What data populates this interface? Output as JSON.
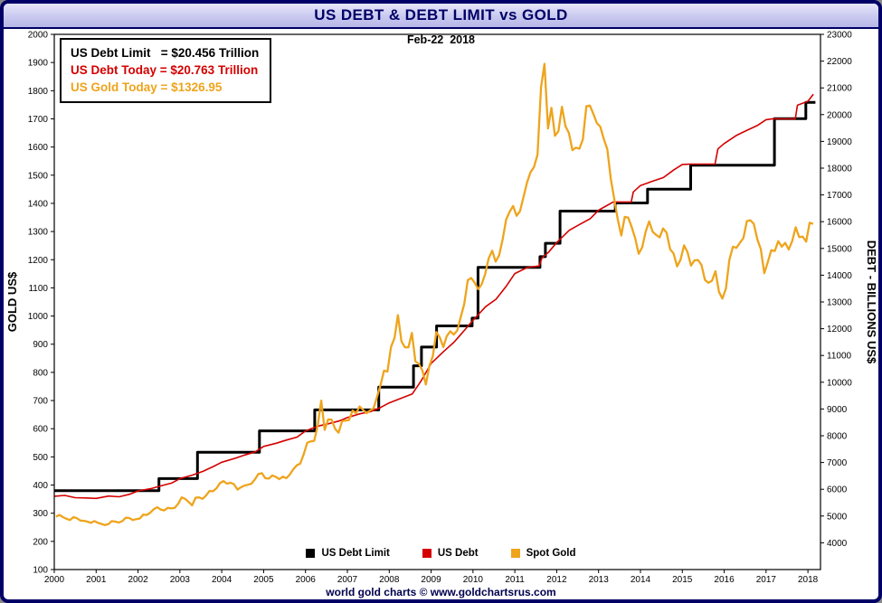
{
  "header": {
    "title": "US DEBT & DEBT LIMIT vs GOLD",
    "date_label": "Feb-22  2018"
  },
  "info_box": {
    "rows": [
      {
        "text": "US Debt Limit   = $20.456 Trillion",
        "color": "#000000"
      },
      {
        "text": "US Debt Today = $20.763 Trillion",
        "color": "#d40000"
      },
      {
        "text": "US Gold Today = $1326.95",
        "color": "#EEA41C"
      }
    ]
  },
  "footer": {
    "caption": "world gold charts © www.goldchartsrus.com"
  },
  "colors": {
    "frame": "#000066",
    "titlebar_text": "#000066",
    "plot_border": "#000000",
    "background": "#ffffff",
    "debt_limit": "#000000",
    "debt": "#d40000",
    "gold": "#EEA41C"
  },
  "chart_data": {
    "type": "line",
    "title": "US DEBT & DEBT LIMIT vs GOLD",
    "date_annotation": "Feb-22  2018",
    "grid": false,
    "legend_position": "bottom-center-inside",
    "x_axis": {
      "min": 2000,
      "max": 2018.3,
      "first_label": 2000,
      "last_label": 2018,
      "label_step": 1
    },
    "left_axis": {
      "title": "GOLD US$",
      "min": 100,
      "max": 2000,
      "tick_step": 100
    },
    "right_axis": {
      "title": "DEBT - BILLIONS US$",
      "min": 3000,
      "max": 23000,
      "tick_step": 1000,
      "first_tick": 4000
    },
    "series": [
      {
        "name": "US Debt Limit",
        "axis": "right",
        "color": "#000000",
        "width": 3,
        "style": "step",
        "end_x": 2018.18,
        "points": [
          [
            2000.0,
            5950
          ],
          [
            2002.5,
            6400
          ],
          [
            2003.42,
            7384
          ],
          [
            2004.9,
            8184
          ],
          [
            2006.22,
            8965
          ],
          [
            2007.75,
            9815
          ],
          [
            2008.58,
            10615
          ],
          [
            2008.77,
            11315
          ],
          [
            2009.13,
            12104
          ],
          [
            2009.98,
            12394
          ],
          [
            2010.12,
            14294
          ],
          [
            2011.6,
            14694
          ],
          [
            2011.73,
            15194
          ],
          [
            2012.08,
            16394
          ],
          [
            2013.4,
            16699
          ],
          [
            2014.17,
            17212
          ],
          [
            2015.2,
            18113
          ],
          [
            2017.2,
            19847
          ],
          [
            2017.95,
            20456
          ]
        ]
      },
      {
        "name": "US Debt",
        "axis": "right",
        "color": "#d40000",
        "width": 1.6,
        "style": "line",
        "points": [
          [
            2000.0,
            5740
          ],
          [
            2000.25,
            5770
          ],
          [
            2000.5,
            5685
          ],
          [
            2000.75,
            5675
          ],
          [
            2001.0,
            5660
          ],
          [
            2001.3,
            5745
          ],
          [
            2001.55,
            5720
          ],
          [
            2001.8,
            5815
          ],
          [
            2002.0,
            5940
          ],
          [
            2002.3,
            6020
          ],
          [
            2002.55,
            6130
          ],
          [
            2002.8,
            6230
          ],
          [
            2003.0,
            6400
          ],
          [
            2003.3,
            6530
          ],
          [
            2003.55,
            6670
          ],
          [
            2003.8,
            6850
          ],
          [
            2004.0,
            7010
          ],
          [
            2004.3,
            7150
          ],
          [
            2004.55,
            7280
          ],
          [
            2004.8,
            7400
          ],
          [
            2005.0,
            7600
          ],
          [
            2005.3,
            7720
          ],
          [
            2005.55,
            7840
          ],
          [
            2005.8,
            7950
          ],
          [
            2006.0,
            8180
          ],
          [
            2006.3,
            8360
          ],
          [
            2006.55,
            8450
          ],
          [
            2006.8,
            8550
          ],
          [
            2007.0,
            8680
          ],
          [
            2007.3,
            8820
          ],
          [
            2007.55,
            8900
          ],
          [
            2007.8,
            9060
          ],
          [
            2008.0,
            9230
          ],
          [
            2008.3,
            9410
          ],
          [
            2008.55,
            9560
          ],
          [
            2008.75,
            10025
          ],
          [
            2009.0,
            10700
          ],
          [
            2009.3,
            11150
          ],
          [
            2009.55,
            11500
          ],
          [
            2009.8,
            11950
          ],
          [
            2010.0,
            12310
          ],
          [
            2010.3,
            12820
          ],
          [
            2010.55,
            13100
          ],
          [
            2010.8,
            13600
          ],
          [
            2011.0,
            14060
          ],
          [
            2011.3,
            14290
          ],
          [
            2011.58,
            14343
          ],
          [
            2011.65,
            14650
          ],
          [
            2011.8,
            14850
          ],
          [
            2012.0,
            15220
          ],
          [
            2012.3,
            15680
          ],
          [
            2012.55,
            15900
          ],
          [
            2012.8,
            16110
          ],
          [
            2013.0,
            16430
          ],
          [
            2013.35,
            16738
          ],
          [
            2013.78,
            16740
          ],
          [
            2013.83,
            17110
          ],
          [
            2014.0,
            17350
          ],
          [
            2014.3,
            17520
          ],
          [
            2014.55,
            17650
          ],
          [
            2014.8,
            17940
          ],
          [
            2015.0,
            18140
          ],
          [
            2015.2,
            18152
          ],
          [
            2015.78,
            18153
          ],
          [
            2015.85,
            18720
          ],
          [
            2016.0,
            18920
          ],
          [
            2016.3,
            19230
          ],
          [
            2016.55,
            19420
          ],
          [
            2016.8,
            19600
          ],
          [
            2017.0,
            19810
          ],
          [
            2017.15,
            19846
          ],
          [
            2017.7,
            19846
          ],
          [
            2017.75,
            20350
          ],
          [
            2018.0,
            20500
          ],
          [
            2018.13,
            20763
          ]
        ]
      },
      {
        "name": "Spot Gold",
        "axis": "left",
        "color": "#EEA41C",
        "width": 2.3,
        "style": "line",
        "monthly": {
          "start_year": 2000,
          "values": [
            288,
            294,
            286,
            280,
            276,
            286,
            282,
            274,
            273,
            270,
            266,
            272,
            266,
            262,
            258,
            261,
            272,
            270,
            267,
            272,
            284,
            283,
            276,
            279,
            281,
            295,
            294,
            302,
            314,
            321,
            313,
            310,
            319,
            317,
            319,
            333,
            356,
            351,
            340,
            328,
            355,
            356,
            351,
            363,
            379,
            378,
            389,
            407,
            414,
            405,
            408,
            403,
            384,
            392,
            398,
            401,
            405,
            420,
            439,
            442,
            424,
            423,
            434,
            429,
            421,
            430,
            424,
            437,
            456,
            470,
            476,
            510,
            550,
            555,
            557,
            611,
            700,
            596,
            633,
            632,
            599,
            586,
            627,
            629,
            631,
            665,
            655,
            679,
            667,
            655,
            665,
            672,
            713,
            754,
            806,
            803,
            890,
            922,
            1003,
            910,
            889,
            889,
            940,
            839,
            830,
            807,
            757,
            822,
            858,
            943,
            924,
            890,
            929,
            946,
            934,
            949,
            996,
            1043,
            1127,
            1135,
            1118,
            1095,
            1113,
            1149,
            1205,
            1232,
            1193,
            1216,
            1271,
            1342,
            1370,
            1391,
            1356,
            1373,
            1424,
            1474,
            1511,
            1529,
            1573,
            1813,
            1895,
            1666,
            1739,
            1640,
            1656,
            1743,
            1674,
            1650,
            1589,
            1598,
            1594,
            1627,
            1745,
            1747,
            1718,
            1685,
            1672,
            1628,
            1593,
            1487,
            1414,
            1343,
            1286,
            1352,
            1349,
            1316,
            1276,
            1221,
            1244,
            1300,
            1336,
            1299,
            1288,
            1279,
            1311,
            1296,
            1237,
            1222,
            1176,
            1200,
            1251,
            1227,
            1179,
            1198,
            1199,
            1181,
            1128,
            1118,
            1125,
            1159,
            1086,
            1062,
            1098,
            1200,
            1246,
            1242,
            1260,
            1277,
            1337,
            1340,
            1327,
            1272,
            1238,
            1152,
            1192,
            1234,
            1231,
            1266,
            1246,
            1260,
            1236,
            1267,
            1315,
            1280,
            1282,
            1264,
            1331,
            1327
          ]
        }
      }
    ]
  }
}
